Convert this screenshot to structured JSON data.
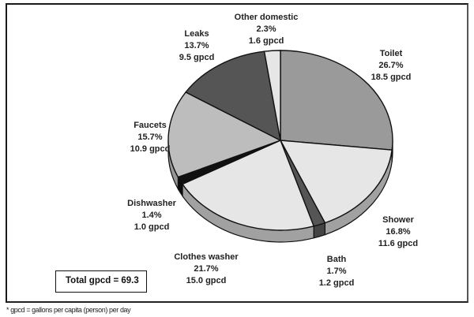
{
  "chart_data": {
    "type": "pie",
    "title": "",
    "unit": "gpcd",
    "slices": [
      {
        "label": "Toilet",
        "percent": 26.7,
        "gpcd": 18.5,
        "color": "#9a9a9a"
      },
      {
        "label": "Shower",
        "percent": 16.8,
        "gpcd": 11.6,
        "color": "#e6e6e6"
      },
      {
        "label": "Bath",
        "percent": 1.7,
        "gpcd": 1.2,
        "color": "#555555"
      },
      {
        "label": "Clothes washer",
        "percent": 21.7,
        "gpcd": 15.0,
        "color": "#e6e6e6"
      },
      {
        "label": "Dishwasher",
        "percent": 1.4,
        "gpcd": 1.0,
        "color": "#111111"
      },
      {
        "label": "Faucets",
        "percent": 15.7,
        "gpcd": 10.9,
        "color": "#bdbdbd"
      },
      {
        "label": "Leaks",
        "percent": 13.7,
        "gpcd": 9.5,
        "color": "#555555"
      },
      {
        "label": "Other domestic",
        "percent": 2.3,
        "gpcd": 1.6,
        "color": "#e6e6e6"
      }
    ],
    "total": 69.3
  },
  "labels": {
    "toilet": {
      "name": "Toilet",
      "pct": "26.7%",
      "gpcd": "18.5 gpcd"
    },
    "shower": {
      "name": "Shower",
      "pct": "16.8%",
      "gpcd": "11.6 gpcd"
    },
    "bath": {
      "name": "Bath",
      "pct": "1.7%",
      "gpcd": "1.2 gpcd"
    },
    "clothes": {
      "name": "Clothes washer",
      "pct": "21.7%",
      "gpcd": "15.0 gpcd"
    },
    "dish": {
      "name": "Dishwasher",
      "pct": "1.4%",
      "gpcd": "1.0 gpcd"
    },
    "faucets": {
      "name": "Faucets",
      "pct": "15.7%",
      "gpcd": "10.9 gpcd"
    },
    "leaks": {
      "name": "Leaks",
      "pct": "13.7%",
      "gpcd": "9.5 gpcd"
    },
    "other": {
      "name": "Other domestic",
      "pct": "2.3%",
      "gpcd": "1.6 gpcd"
    }
  },
  "total_box": "Total gpcd = 69.3",
  "footnote": "* gpcd = gallons per capita (person) per day"
}
